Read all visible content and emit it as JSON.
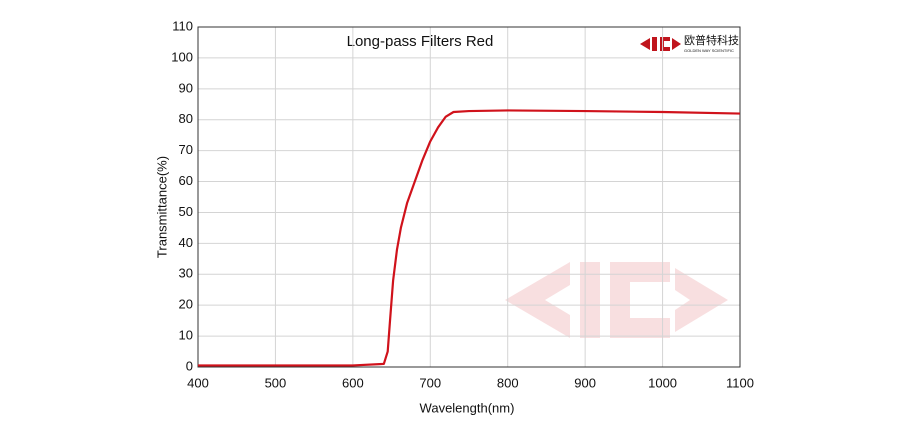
{
  "chart_data": {
    "type": "line",
    "title": "Long-pass Filters Red",
    "x_label": "Wavelength(nm)",
    "y_label": "Transmittance(%)",
    "logo": {
      "name": "欧普特科技",
      "subtitle": "GOLDEN WAY SCIENTIFIC"
    },
    "xlim": [
      400,
      1100
    ],
    "xticks": [
      400,
      500,
      600,
      700,
      800,
      900,
      1000,
      1100
    ],
    "ylim": [
      0,
      110
    ],
    "yticks": [
      0,
      10,
      20,
      30,
      40,
      50,
      60,
      70,
      80,
      90,
      100,
      110
    ],
    "grid": true,
    "x": [
      400,
      500,
      600,
      640,
      645,
      648,
      652,
      657,
      662,
      670,
      680,
      690,
      700,
      710,
      720,
      730,
      750,
      800,
      900,
      1000,
      1100
    ],
    "series": [
      {
        "color": "#d0121b",
        "values": [
          0.5,
          0.5,
          0.5,
          1,
          5,
          15,
          28,
          38,
          45,
          53,
          60,
          67,
          73,
          77.5,
          81,
          82.5,
          82.8,
          83,
          82.8,
          82.5,
          82
        ]
      }
    ]
  }
}
